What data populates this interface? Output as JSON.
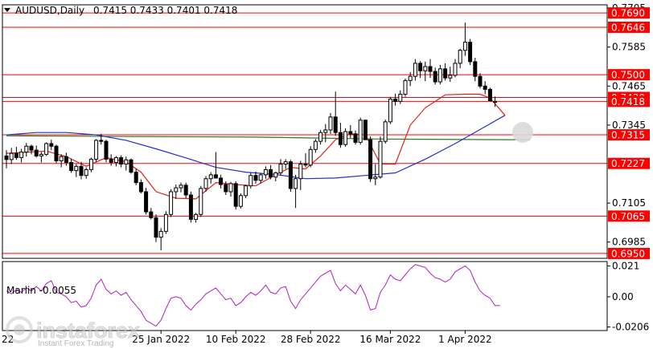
{
  "header": {
    "symbol_label": "AUDUSD,Daily",
    "ohlc_values": "0.7415 0.7433 0.7401 0.7418"
  },
  "indicator": {
    "label": "Marlin -0.0055",
    "ticks": [
      "0.021",
      "0.00",
      "-0.0206"
    ]
  },
  "watermark": {
    "brand": "instaforex",
    "tagline": "Instant Forex Trading"
  },
  "colors": {
    "level_line": "#ff0000",
    "level_tag": "#ff0000",
    "ma_fast": "#e02020",
    "ma_slow": "#2030c8",
    "ma_long": "#2e7d1e",
    "oscillator": "#b020c0",
    "candle": "#000000"
  },
  "chart_data": {
    "type": "candlestick",
    "price_axis_ticks": [
      "0.7705",
      "0.7585",
      "0.7465",
      "0.7345",
      "0.7105",
      "0.6985"
    ],
    "levels": [
      "0.7690",
      "0.7646",
      "0.7500",
      "0.7430",
      "0.7418",
      "0.7315",
      "0.7227",
      "0.7065",
      "0.6950"
    ],
    "x_labels": [
      "25 Jan 2022",
      "10 Feb 2022",
      "28 Feb 2022",
      "16 Mar 2022",
      "1 Apr 2022"
    ],
    "x_partial_label": "22",
    "ylim": [
      0.6935,
      0.7715
    ],
    "candles": [
      [
        0.725,
        0.7268,
        0.7212,
        0.7239
      ],
      [
        0.7239,
        0.7275,
        0.7225,
        0.7258
      ],
      [
        0.7258,
        0.7278,
        0.7238,
        0.7245
      ],
      [
        0.7245,
        0.7272,
        0.723,
        0.7262
      ],
      [
        0.7262,
        0.729,
        0.7248,
        0.728
      ],
      [
        0.728,
        0.7285,
        0.7255,
        0.7268
      ],
      [
        0.7268,
        0.7282,
        0.7245,
        0.725
      ],
      [
        0.725,
        0.7262,
        0.723,
        0.7255
      ],
      [
        0.7255,
        0.7292,
        0.725,
        0.7288
      ],
      [
        0.7288,
        0.73,
        0.7268,
        0.728
      ],
      [
        0.728,
        0.7285,
        0.7228,
        0.7235
      ],
      [
        0.7235,
        0.7255,
        0.7215,
        0.7248
      ],
      [
        0.7248,
        0.726,
        0.722,
        0.723
      ],
      [
        0.723,
        0.7242,
        0.7198,
        0.7205
      ],
      [
        0.7205,
        0.7225,
        0.7185,
        0.7218
      ],
      [
        0.7218,
        0.7232,
        0.7178,
        0.719
      ],
      [
        0.719,
        0.7215,
        0.718,
        0.7208
      ],
      [
        0.7208,
        0.7245,
        0.72,
        0.724
      ],
      [
        0.724,
        0.7302,
        0.7232,
        0.7298
      ],
      [
        0.7298,
        0.7318,
        0.7285,
        0.7295
      ],
      [
        0.7295,
        0.73,
        0.723,
        0.724
      ],
      [
        0.724,
        0.7255,
        0.722,
        0.723
      ],
      [
        0.723,
        0.725,
        0.7218,
        0.7245
      ],
      [
        0.7245,
        0.7252,
        0.7215,
        0.7225
      ],
      [
        0.7225,
        0.7248,
        0.7205,
        0.7238
      ],
      [
        0.7238,
        0.7242,
        0.7195,
        0.72
      ],
      [
        0.72,
        0.721,
        0.716,
        0.7168
      ],
      [
        0.7168,
        0.7178,
        0.7135,
        0.714
      ],
      [
        0.714,
        0.7152,
        0.707,
        0.7078
      ],
      [
        0.7078,
        0.709,
        0.7055,
        0.706
      ],
      [
        0.706,
        0.707,
        0.6985,
        0.7
      ],
      [
        0.7,
        0.7028,
        0.696,
        0.7018
      ],
      [
        0.7018,
        0.708,
        0.701,
        0.707
      ],
      [
        0.707,
        0.7148,
        0.7062,
        0.714
      ],
      [
        0.714,
        0.7162,
        0.7118,
        0.7152
      ],
      [
        0.7152,
        0.7168,
        0.7138,
        0.716
      ],
      [
        0.716,
        0.7168,
        0.712,
        0.713
      ],
      [
        0.713,
        0.714,
        0.7045,
        0.7055
      ],
      [
        0.7055,
        0.7075,
        0.7045,
        0.707
      ],
      [
        0.707,
        0.7158,
        0.7062,
        0.715
      ],
      [
        0.715,
        0.7188,
        0.714,
        0.718
      ],
      [
        0.718,
        0.72,
        0.7165,
        0.7192
      ],
      [
        0.7192,
        0.7262,
        0.7182,
        0.7182
      ],
      [
        0.7182,
        0.7192,
        0.715,
        0.7162
      ],
      [
        0.7162,
        0.7172,
        0.713,
        0.714
      ],
      [
        0.714,
        0.717,
        0.7125,
        0.7165
      ],
      [
        0.7165,
        0.7172,
        0.7085,
        0.7095
      ],
      [
        0.7095,
        0.7135,
        0.7088,
        0.7128
      ],
      [
        0.7128,
        0.7162,
        0.712,
        0.7158
      ],
      [
        0.7158,
        0.7198,
        0.715,
        0.719
      ],
      [
        0.719,
        0.7202,
        0.7165,
        0.7175
      ],
      [
        0.7175,
        0.7198,
        0.7165,
        0.7192
      ],
      [
        0.7192,
        0.7218,
        0.718,
        0.7208
      ],
      [
        0.7208,
        0.7222,
        0.7178,
        0.7185
      ],
      [
        0.7185,
        0.7202,
        0.7172,
        0.7198
      ],
      [
        0.7198,
        0.724,
        0.719,
        0.7225
      ],
      [
        0.7225,
        0.724,
        0.721,
        0.7232
      ],
      [
        0.7232,
        0.7238,
        0.714,
        0.715
      ],
      [
        0.715,
        0.7192,
        0.709,
        0.718
      ],
      [
        0.718,
        0.7235,
        0.7145,
        0.7225
      ],
      [
        0.7225,
        0.7258,
        0.7215,
        0.7222
      ],
      [
        0.7222,
        0.728,
        0.7215,
        0.727
      ],
      [
        0.727,
        0.7302,
        0.726,
        0.7295
      ],
      [
        0.7295,
        0.733,
        0.7285,
        0.7322
      ],
      [
        0.7322,
        0.7348,
        0.7292,
        0.733
      ],
      [
        0.733,
        0.7382,
        0.7318,
        0.737
      ],
      [
        0.737,
        0.7448,
        0.7312,
        0.7322
      ],
      [
        0.7322,
        0.7352,
        0.7275,
        0.7285
      ],
      [
        0.7285,
        0.7335,
        0.7278,
        0.7325
      ],
      [
        0.7325,
        0.7345,
        0.7305,
        0.7318
      ],
      [
        0.7318,
        0.7328,
        0.7285,
        0.7292
      ],
      [
        0.7292,
        0.7368,
        0.7285,
        0.736
      ],
      [
        0.736,
        0.7362,
        0.73,
        0.73
      ],
      [
        0.73,
        0.731,
        0.717,
        0.718
      ],
      [
        0.718,
        0.7225,
        0.716,
        0.7185
      ],
      [
        0.7185,
        0.731,
        0.718,
        0.7295
      ],
      [
        0.7295,
        0.7362,
        0.7288,
        0.7355
      ],
      [
        0.7355,
        0.7432,
        0.7348,
        0.7425
      ],
      [
        0.7425,
        0.7442,
        0.7405,
        0.7418
      ],
      [
        0.7418,
        0.7452,
        0.741,
        0.744
      ],
      [
        0.744,
        0.7488,
        0.7432,
        0.7482
      ],
      [
        0.7482,
        0.7508,
        0.7465,
        0.7495
      ],
      [
        0.7495,
        0.7548,
        0.7482,
        0.7535
      ],
      [
        0.7535,
        0.7542,
        0.749,
        0.7512
      ],
      [
        0.7512,
        0.754,
        0.748,
        0.7525
      ],
      [
        0.7525,
        0.7548,
        0.749,
        0.751
      ],
      [
        0.751,
        0.7522,
        0.747,
        0.7478
      ],
      [
        0.7478,
        0.753,
        0.747,
        0.7518
      ],
      [
        0.7518,
        0.7535,
        0.7482,
        0.749
      ],
      [
        0.749,
        0.7525,
        0.7478,
        0.7498
      ],
      [
        0.7498,
        0.7548,
        0.7492,
        0.7535
      ],
      [
        0.7535,
        0.758,
        0.752,
        0.7575
      ],
      [
        0.7575,
        0.766,
        0.7558,
        0.76
      ],
      [
        0.76,
        0.761,
        0.753,
        0.754
      ],
      [
        0.754,
        0.7552,
        0.748,
        0.7495
      ],
      [
        0.7495,
        0.7505,
        0.7458,
        0.7465
      ],
      [
        0.7465,
        0.748,
        0.744,
        0.7455
      ],
      [
        0.7455,
        0.746,
        0.7418,
        0.742
      ],
      [
        0.7415,
        0.7433,
        0.7401,
        0.7418
      ]
    ],
    "ma_fast": [
      [
        0,
        0.7258
      ],
      [
        8,
        0.7265
      ],
      [
        12,
        0.7248
      ],
      [
        16,
        0.7218
      ],
      [
        20,
        0.7245
      ],
      [
        24,
        0.7232
      ],
      [
        27,
        0.72
      ],
      [
        30,
        0.714
      ],
      [
        34,
        0.712
      ],
      [
        38,
        0.7118
      ],
      [
        42,
        0.7168
      ],
      [
        46,
        0.7162
      ],
      [
        50,
        0.7158
      ],
      [
        54,
        0.7192
      ],
      [
        57,
        0.7215
      ],
      [
        60,
        0.721
      ],
      [
        63,
        0.725
      ],
      [
        66,
        0.73
      ],
      [
        69,
        0.7318
      ],
      [
        72,
        0.7315
      ],
      [
        75,
        0.7225
      ],
      [
        78,
        0.7225
      ],
      [
        81,
        0.7345
      ],
      [
        84,
        0.7398
      ],
      [
        88,
        0.7438
      ],
      [
        92,
        0.744
      ],
      [
        95,
        0.744
      ],
      [
        97,
        0.7428
      ],
      [
        100,
        0.7375
      ]
    ],
    "ma_slow": [
      [
        0,
        0.7315
      ],
      [
        6,
        0.7322
      ],
      [
        12,
        0.7322
      ],
      [
        18,
        0.7315
      ],
      [
        24,
        0.7298
      ],
      [
        30,
        0.7272
      ],
      [
        36,
        0.7244
      ],
      [
        42,
        0.7215
      ],
      [
        48,
        0.72
      ],
      [
        54,
        0.7193
      ],
      [
        60,
        0.718
      ],
      [
        66,
        0.7182
      ],
      [
        72,
        0.719
      ],
      [
        78,
        0.7198
      ],
      [
        84,
        0.724
      ],
      [
        90,
        0.7288
      ],
      [
        96,
        0.734
      ],
      [
        100,
        0.7375
      ]
    ],
    "ma_long": [
      [
        0,
        0.7312
      ],
      [
        25,
        0.731
      ],
      [
        50,
        0.7308
      ],
      [
        75,
        0.7302
      ],
      [
        100,
        0.73
      ],
      [
        105,
        0.73
      ]
    ],
    "oscillator": {
      "ylim": [
        -0.023,
        0.024
      ],
      "values": [
        0.004,
        0.002,
        0.005,
        0.003,
        0.006,
        0.004,
        0.007,
        0.004,
        0.009,
        0.011,
        0.003,
        0.002,
        0.0,
        -0.004,
        -0.003,
        -0.007,
        -0.006,
        -0.001,
        0.008,
        0.012,
        0.005,
        0.002,
        0.004,
        0.001,
        0.003,
        -0.002,
        -0.006,
        -0.01,
        -0.016,
        -0.018,
        -0.02,
        -0.016,
        -0.008,
        -0.001,
        0.0,
        -0.001,
        -0.006,
        -0.009,
        -0.005,
        -0.002,
        0.002,
        0.004,
        0.006,
        0.002,
        -0.002,
        -0.001,
        -0.006,
        -0.004,
        0.0,
        0.003,
        0.001,
        0.004,
        0.008,
        0.003,
        0.002,
        0.006,
        0.007,
        -0.003,
        -0.008,
        -0.002,
        0.002,
        0.006,
        0.01,
        0.014,
        0.016,
        0.018,
        0.009,
        0.004,
        0.008,
        0.005,
        0.002,
        0.008,
        0.001,
        -0.009,
        -0.008,
        0.003,
        0.008,
        0.015,
        0.012,
        0.011,
        0.015,
        0.019,
        0.022,
        0.021,
        0.02,
        0.016,
        0.013,
        0.012,
        0.01,
        0.012,
        0.017,
        0.019,
        0.021,
        0.018,
        0.01,
        0.004,
        0.001,
        -0.001,
        -0.006,
        -0.006
      ]
    }
  }
}
